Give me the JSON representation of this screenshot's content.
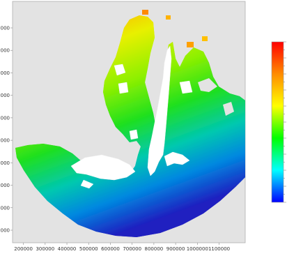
{
  "colors": {
    "background": "#ffffff",
    "panel": "#e3e3e3",
    "frame": "#b0b0b0",
    "water": "#ffffff"
  },
  "map": {
    "x_axis": {
      "tick_values": [
        200000,
        300000,
        400000,
        500000,
        600000,
        700000,
        800000,
        900000,
        1000000,
        1100000
      ],
      "tick_labels": [
        "200000",
        "300000",
        "400000",
        "500000",
        "600000",
        "700000",
        "800000",
        "900000",
        "1000000",
        "1100000"
      ],
      "range": [
        150000,
        1220000
      ]
    },
    "y_axis": {
      "tick_count": 10,
      "tick_labels": [
        "000",
        "000",
        "000",
        "000",
        "000",
        "000",
        "000",
        "000",
        "000",
        "000"
      ]
    },
    "colorbar": {
      "colormap": "rainbow",
      "stops": [
        "#ff0000",
        "#ff8c00",
        "#ffff00",
        "#00ff00",
        "#00ffff",
        "#0000ff"
      ],
      "orientation": "vertical"
    }
  }
}
